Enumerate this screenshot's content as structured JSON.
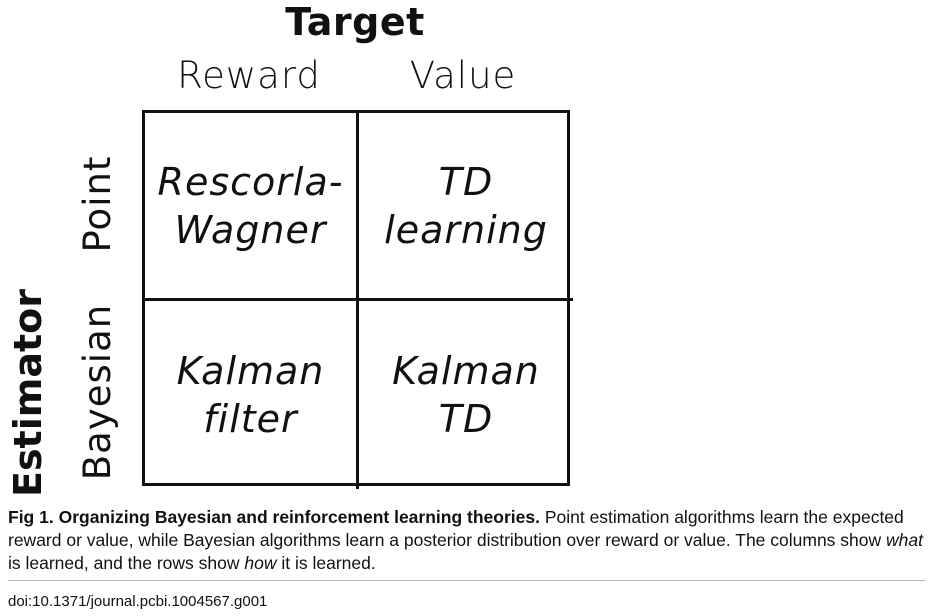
{
  "figure": {
    "top_axis_title": "Target",
    "left_axis_title": "Estimator",
    "columns": [
      "Reward",
      "Value"
    ],
    "rows": [
      "Point",
      "Bayesian"
    ],
    "cells": [
      {
        "line1": "Rescorla-",
        "line2": "Wagner"
      },
      {
        "line1": "TD",
        "line2": "learning"
      },
      {
        "line1": "Kalman",
        "line2": "filter"
      },
      {
        "line1": "Kalman",
        "line2": "TD"
      }
    ]
  },
  "caption": {
    "label": "Fig 1.",
    "title": "Organizing Bayesian and reinforcement learning theories.",
    "text_a": "Point estimation algorithms learn the expected reward or value, while Bayesian algorithms learn a posterior distribution over reward or value. The columns show ",
    "em_a": "what",
    "text_b": " is learned, and the rows show ",
    "em_b": "how",
    "text_c": " it is learned."
  },
  "doi": "doi:10.1371/journal.pcbi.1004567.g001"
}
